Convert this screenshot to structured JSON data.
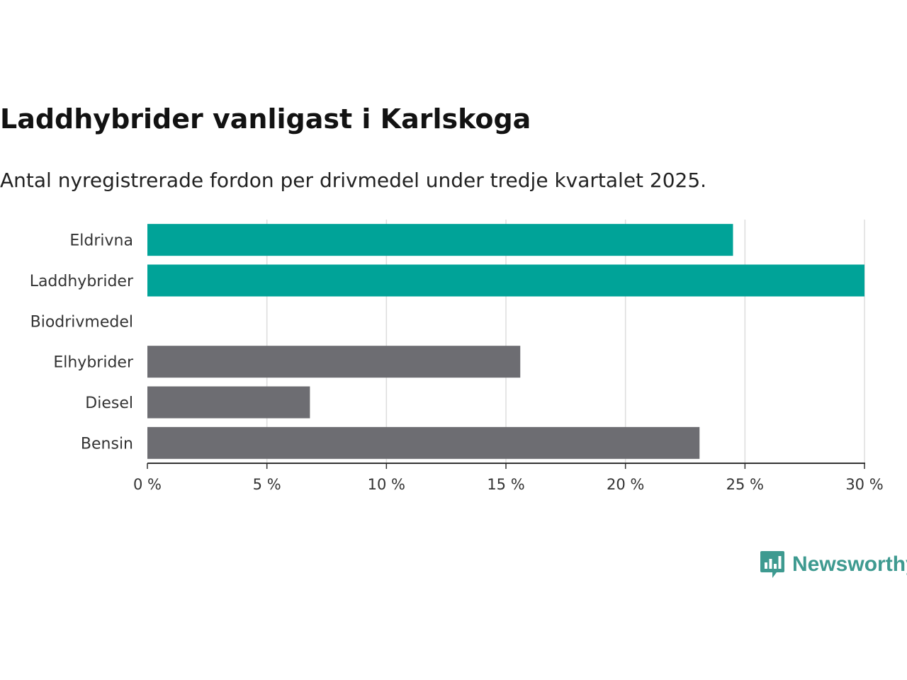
{
  "title": "Laddhybrider vanligast i Karlskoga",
  "subtitle": "Antal nyregistrerade fordon per drivmedel under tredje kvartalet 2025.",
  "brand": {
    "name": "Newsworthy",
    "color": "#3e9a90",
    "icon": "newsworthy-bar-chart-icon"
  },
  "colors": {
    "highlight": "#00a398",
    "default": "#6d6d72",
    "grid": "#dddddd",
    "axis": "#333333"
  },
  "chart_data": {
    "type": "bar",
    "orientation": "horizontal",
    "title": "Laddhybrider vanligast i Karlskoga",
    "subtitle": "Antal nyregistrerade fordon per drivmedel under tredje kvartalet 2025.",
    "categories": [
      "Eldrivna",
      "Laddhybrider",
      "Biodrivmedel",
      "Elhybrider",
      "Diesel",
      "Bensin"
    ],
    "values": [
      24.5,
      30.0,
      0,
      15.6,
      6.8,
      23.1
    ],
    "highlighted": [
      true,
      true,
      false,
      false,
      false,
      false
    ],
    "xlim": [
      0,
      30
    ],
    "xticks": [
      0,
      5,
      10,
      15,
      20,
      25,
      30
    ],
    "tick_labels": [
      "0 %",
      "5 %",
      "10 %",
      "15 %",
      "20 %",
      "25 %",
      "30 %"
    ],
    "unit": "%",
    "xlabel": "",
    "ylabel": "",
    "grid": true
  }
}
